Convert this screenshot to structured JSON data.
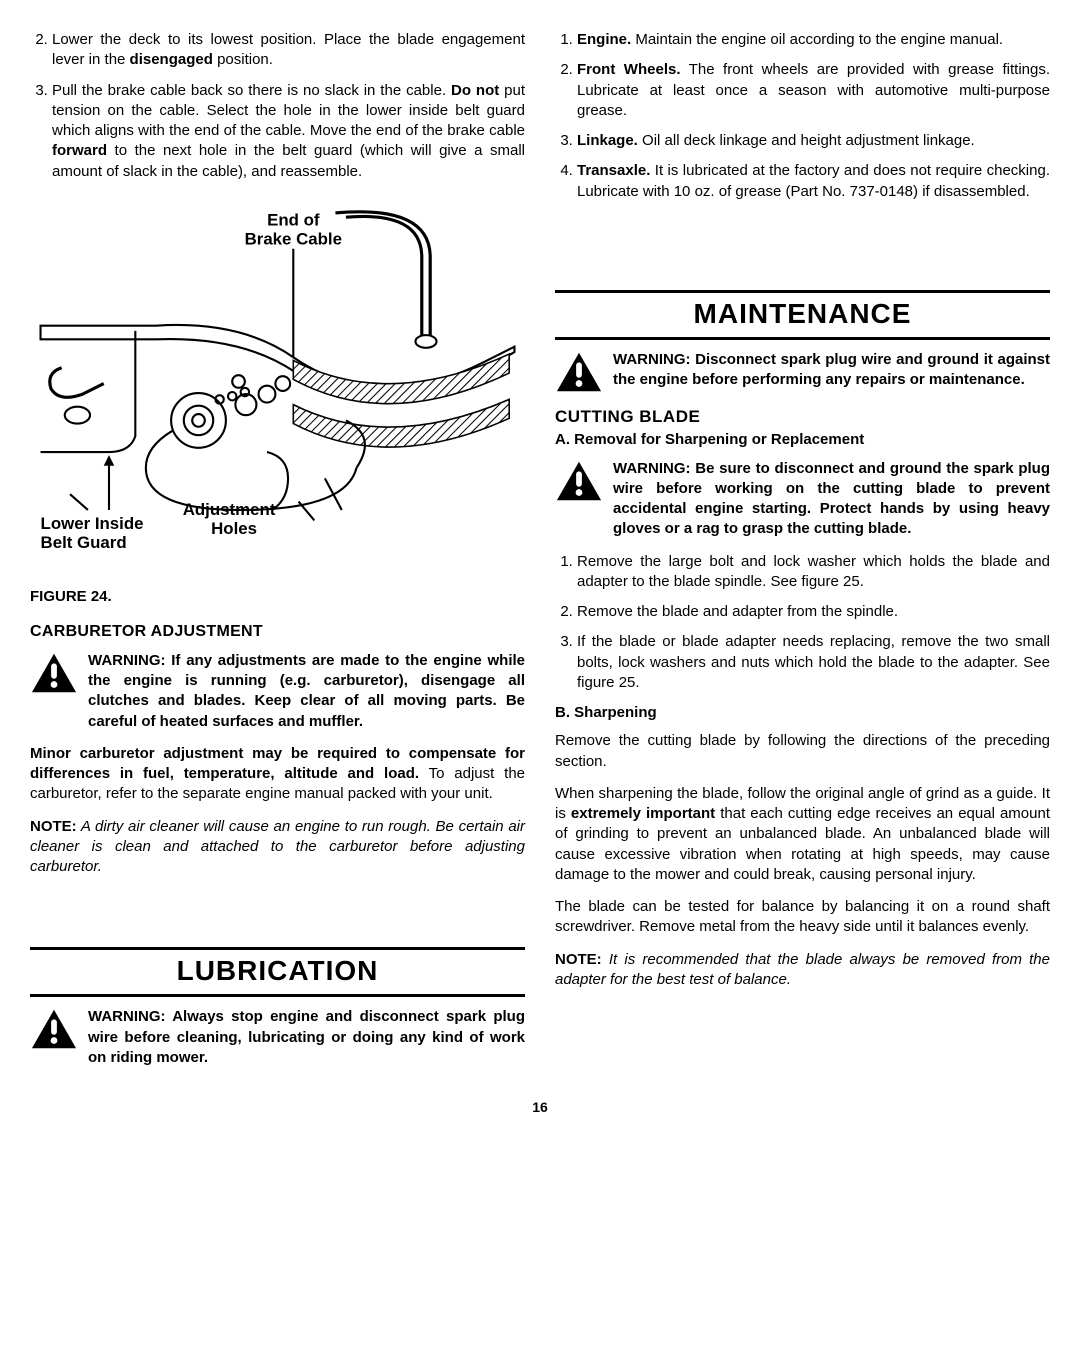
{
  "left": {
    "list1": {
      "start": 2,
      "items": [
        "Lower the deck to its lowest position. Place the blade engagement lever in the |b|disengaged|/b| position.",
        "Pull the brake cable back so there is no slack in the cable. |b|Do not|/b| put tension on the cable. Select the hole in the lower inside belt guard which aligns with the end of the cable. Move the end of the brake cable |b|forward|/b| to the next hole in the belt guard (which will give a small amount of slack in the cable), and reassemble."
      ]
    },
    "figure": {
      "label": "FIGURE 24.",
      "labels": {
        "end": "End of",
        "brake": "Brake Cable",
        "lower1": "Lower Inside",
        "lower2": "Belt Guard",
        "adj1": "Adjustment",
        "adj2": "Holes"
      }
    },
    "carb_head": "CARBURETOR ADJUSTMENT",
    "carb_warning": "WARNING: If any adjustments are made to the engine while the engine is running (e.g. carburetor), disengage all clutches and blades. Keep clear of all moving parts. Be careful of heated surfaces and muffler.",
    "carb_para": "|b|Minor carburetor adjustment may be required to compensate for differences in fuel, temperature, altitude and load.|/b| To adjust the carburetor, refer to the separate engine manual packed with your unit.",
    "carb_note_lead": "NOTE:",
    "carb_note_body": " A dirty air cleaner will cause an engine to run rough. Be certain air cleaner is clean and attached to the carburetor before adjusting carburetor.",
    "lub_title": "LUBRICATION",
    "lub_warning": "WARNING: Always stop engine and disconnect spark plug wire before cleaning, lubricating or doing any kind of work on riding mower."
  },
  "right": {
    "list1": {
      "start": 1,
      "items": [
        "|b|Engine.|/b| Maintain the engine oil according to the engine manual.",
        "|b|Front Wheels.|/b| The front wheels are provided with grease fittings. Lubricate at least once a season with automotive multi-purpose grease.",
        "|b|Linkage.|/b| Oil all deck linkage and height adjustment linkage.",
        "|b|Transaxle.|/b| It is lubricated at the factory and does not require checking. Lubricate with 10 oz. of grease (Part No. 737-0148) if disassembled."
      ]
    },
    "maint_title": "MAINTENANCE",
    "maint_warning": "WARNING: Disconnect spark plug wire and ground it against the engine before performing any repairs or maintenance.",
    "cutting_head": "CUTTING BLADE",
    "removal_head": "A. Removal for Sharpening or Replacement",
    "removal_warning": "WARNING: Be sure to disconnect and ground the spark plug wire before working on the cutting blade to prevent accidental engine starting. Protect hands by using heavy gloves or a rag to grasp the cutting blade.",
    "removal_list": {
      "start": 1,
      "items": [
        "Remove the large bolt and lock washer which holds the blade and adapter to the blade spindle. See figure 25.",
        "Remove the blade and adapter from the spindle.",
        "If the blade or blade adapter needs replacing, remove the two small bolts, lock washers and nuts which hold the blade to the adapter. See figure 25."
      ]
    },
    "sharp_head": "B. Sharpening",
    "sharp_p1": "Remove the cutting blade by following the directions of the preceding section.",
    "sharp_p2": "When sharpening the blade, follow the original angle of grind as a guide. It is |b|extremely important|/b| that each cutting edge receives an equal amount of grinding to prevent an unbalanced blade. An unbalanced blade will cause excessive vibration when rotating at high speeds, may cause damage to the mower and could break, causing personal injury.",
    "sharp_p3": "The blade can be tested for balance by balancing it on a round shaft screwdriver. Remove metal from the heavy side until it balances evenly.",
    "sharp_note_lead": "NOTE:",
    "sharp_note_body": " It is recommended that the blade always be removed from the adapter for the best test of balance."
  },
  "page_number": "16",
  "colors": {
    "text": "#000000",
    "bg": "#ffffff",
    "hatch": "#000000"
  }
}
